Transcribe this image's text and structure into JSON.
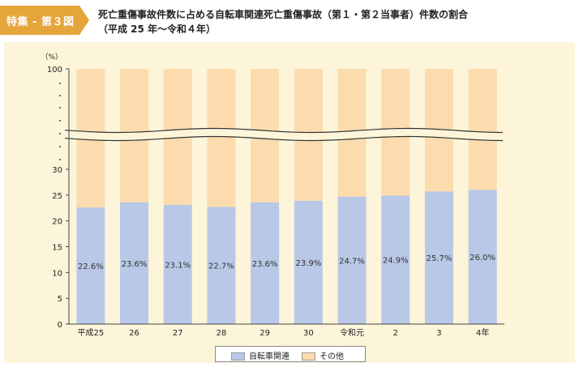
{
  "header": {
    "badge": "特集 - 第３図",
    "title_line1": "死亡重傷事故件数に占める自転車関連死亡重傷事故（第１・第２当事者）件数の割合",
    "title_line2": "（平成 25 年～令和４年）"
  },
  "colors": {
    "bicycle": "#b8c8e6",
    "other": "#fcdcae",
    "panel": "#fdf5da",
    "badge": "#e5a53a"
  },
  "chart_data": {
    "type": "bar",
    "stacked": true,
    "axis_break": true,
    "unit_label": "（%）",
    "categories": [
      "平成25",
      "26",
      "27",
      "28",
      "29",
      "30",
      "令和元",
      "2",
      "3",
      "4年"
    ],
    "series": [
      {
        "name": "自転車関連",
        "values": [
          22.6,
          23.6,
          23.1,
          22.7,
          23.6,
          23.9,
          24.7,
          24.9,
          25.7,
          26.0
        ]
      },
      {
        "name": "その他",
        "values": [
          77.4,
          76.4,
          76.9,
          77.3,
          76.4,
          76.1,
          75.3,
          75.1,
          74.3,
          74.0
        ]
      }
    ],
    "data_labels": [
      "22.6%",
      "23.6%",
      "23.1%",
      "22.7%",
      "23.6%",
      "23.9%",
      "24.7%",
      "24.9%",
      "25.7%",
      "26.0%"
    ],
    "y_ticks_lower": [
      "0",
      "5",
      "10",
      "15",
      "20",
      "25",
      "30"
    ],
    "y_tick_top": "100",
    "ylim": [
      0,
      100
    ],
    "legend_position": "bottom"
  }
}
